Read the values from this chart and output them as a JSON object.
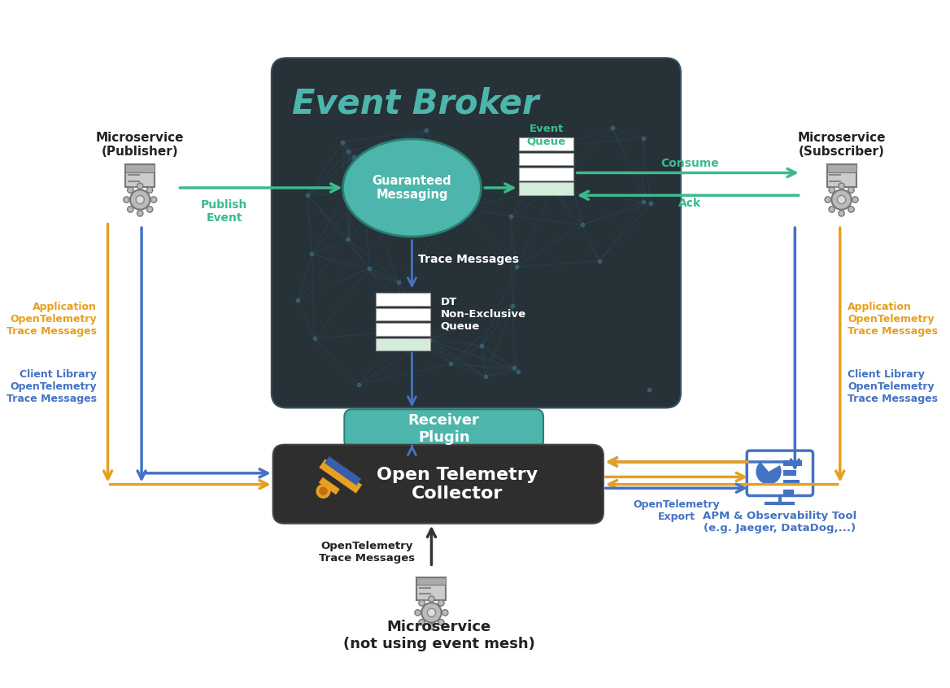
{
  "bg_color": "#ffffff",
  "event_broker_bg": "#263238",
  "event_broker_title": "Event Broker",
  "event_broker_title_color": "#4db6ac",
  "receiver_plugin_bg": "#4db6ac",
  "receiver_plugin_text": "Receiver\nPlugin",
  "collector_bg": "#2e2e2e",
  "collector_text": "Open Telemetry\nCollector",
  "guaranteed_msg_color": "#4db6ac",
  "guaranteed_msg_text": "Guaranteed\nMessaging",
  "colors": {
    "green": "#3dba8c",
    "blue": "#4472c4",
    "orange": "#e6a020",
    "dark_bg": "#263238",
    "gray": "#888888",
    "white": "#ffffff",
    "light_green": "#d4edda",
    "dark_text": "#222222"
  },
  "publisher_label": "Microservice\n(Publisher)",
  "subscriber_label": "Microservice\n(Subscriber)",
  "microservice_bottom_label": "Microservice\n(not using event mesh)",
  "event_queue_label": "Event\nQueue",
  "dt_queue_label": "DT\nNon-Exclusive\nQueue",
  "trace_messages_label": "Trace Messages",
  "publish_event_label": "Publish\nEvent",
  "consume_label": "Consume",
  "ack_label": "Ack",
  "app_otel_left_label": "Application\nOpenTelemetry\nTrace Messages",
  "client_lib_left_label": "Client Library\nOpenTelemetry\nTrace Messages",
  "client_lib_right_label": "Client Library\nOpenTelemetry\nTrace Messages",
  "app_otel_right_label": "Application\nOpenTelemetry\nTrace Messages",
  "otel_export_label": "OpenTelemetry\nExport",
  "otel_trace_bottom_label": "OpenTelemetry\nTrace Messages",
  "apm_label": "APM & Observability Tool\n(e.g. Jaeger, DataDog,...)"
}
